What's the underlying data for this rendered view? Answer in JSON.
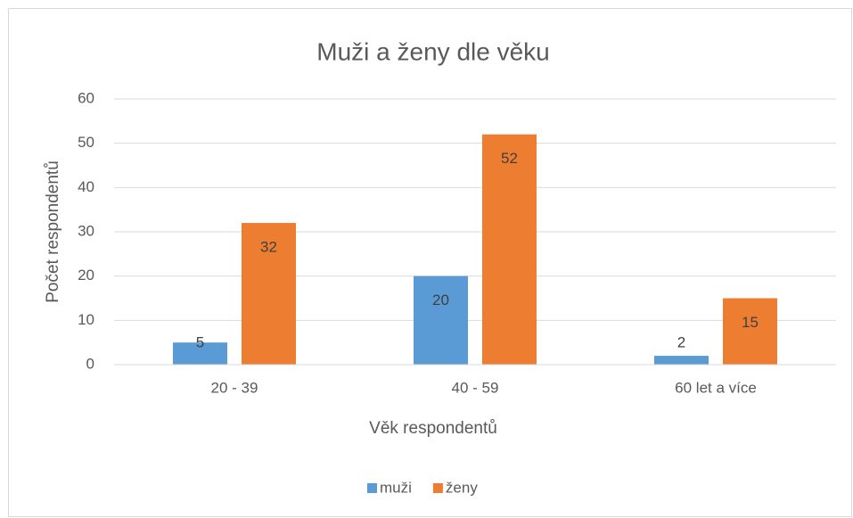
{
  "chart_data": {
    "type": "bar",
    "title": "Muži a ženy dle věku",
    "x_label": "Věk respondentů",
    "y_label": "Počet respondentů",
    "categories": [
      "20 - 39",
      "40 - 59",
      "60 let a více"
    ],
    "series": [
      {
        "name": "muži",
        "color": "#5b9bd5",
        "values": [
          5,
          20,
          2
        ]
      },
      {
        "name": "ženy",
        "color": "#ed7d31",
        "values": [
          32,
          52,
          15
        ]
      }
    ],
    "ylim": [
      0,
      60
    ],
    "yticks": [
      0,
      10,
      20,
      30,
      40,
      50,
      60
    ],
    "grid": true,
    "legend": "bottom"
  }
}
